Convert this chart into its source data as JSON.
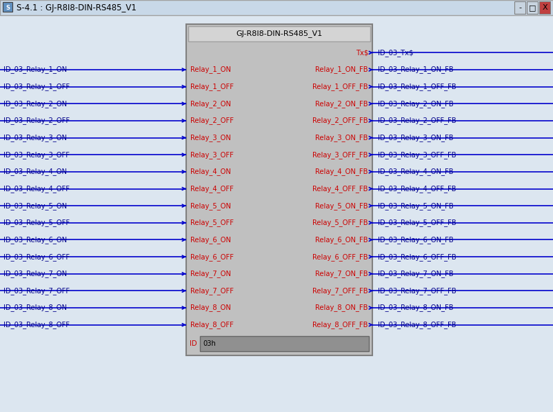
{
  "title_bar_text": "S-4.1 : GJ-R8I8-DIN-RS485_V1",
  "module_title": "GJ-R8I8-DIN-RS485_V1",
  "win_bg": "#dce6f0",
  "titlebar_bg": "#c8d8e8",
  "titlebar_text_color": "#000000",
  "module_bg": "#c0c0c0",
  "module_border": "#808080",
  "module_title_bg": "#d4d4d4",
  "module_title_border": "#a0a0a0",
  "left_labels": [
    "ID_03_Relay_1_ON",
    "ID_03_Relay_1_OFF",
    "ID_03_Relay_2_ON",
    "ID_03_Relay_2_OFF",
    "ID_03_Relay_3_ON",
    "ID_03_Relay_3_OFF",
    "ID_03_Relay_4_ON",
    "ID_03_Relay_4_OFF",
    "ID_03_Relay_5_ON",
    "ID_03_Relay_5_OFF",
    "ID_03_Relay_6_ON",
    "ID_03_Relay_6_OFF",
    "ID_03_Relay_7_ON",
    "ID_03_Relay_7_OFF",
    "ID_03_Relay_8_ON",
    "ID_03_Relay_8_OFF"
  ],
  "left_pins": [
    "Relay_1_ON",
    "Relay_1_OFF",
    "Relay_2_ON",
    "Relay_2_OFF",
    "Relay_3_ON",
    "Relay_3_OFF",
    "Relay_4_ON",
    "Relay_4_OFF",
    "Relay_5_ON",
    "Relay_5_OFF",
    "Relay_6_ON",
    "Relay_6_OFF",
    "Relay_7_ON",
    "Relay_7_OFF",
    "Relay_8_ON",
    "Relay_8_OFF"
  ],
  "right_pins": [
    "Tx$",
    "Relay_1_ON_FB",
    "Relay_1_OFF_FB",
    "Relay_2_ON_FB",
    "Relay_2_OFF_FB",
    "Relay_3_ON_FB",
    "Relay_3_OFF_FB",
    "Relay_4_ON_FB",
    "Relay_4_OFF_FB",
    "Relay_5_ON_FB",
    "Relay_5_OFF_FB",
    "Relay_6_ON_FB",
    "Relay_6_OFF_FB",
    "Relay_7_ON_FB",
    "Relay_7_OFF_FB",
    "Relay_8_ON_FB",
    "Relay_8_OFF_FB"
  ],
  "right_labels": [
    "ID_03_Tx$",
    "ID_03_Relay_1_ON_FB",
    "ID_03_Relay_1_OFF_FB",
    "ID_03_Relay_2_ON_FB",
    "ID_03_Relay_2_OFF_FB",
    "ID_03_Relay_3_ON_FB",
    "ID_03_Relay_3_OFF_FB",
    "ID_03_Relay_4_ON_FB",
    "ID_03_Relay_4_OFF_FB",
    "ID_03_Relay_5_ON_FB",
    "ID_03_Relay_5_OFF_FB",
    "ID_03_Relay_6_ON_FB",
    "ID_03_Relay_6_OFF_FB",
    "ID_03_Relay_7_ON_FB",
    "ID_03_Relay_7_OFF_FB",
    "ID_03_Relay_8_ON_FB",
    "ID_03_Relay_8_OFF_FB"
  ],
  "id_label": "ID",
  "id_value": "03h",
  "pin_color": "#cc0000",
  "label_color": "#00008b",
  "arrow_color": "#0000cc",
  "id_label_color": "#cc0000",
  "id_bg": "#909090",
  "font_size": 7.2,
  "pin_font_size": 7.2,
  "title_font_size": 8.0,
  "titlebar_font_size": 8.5
}
